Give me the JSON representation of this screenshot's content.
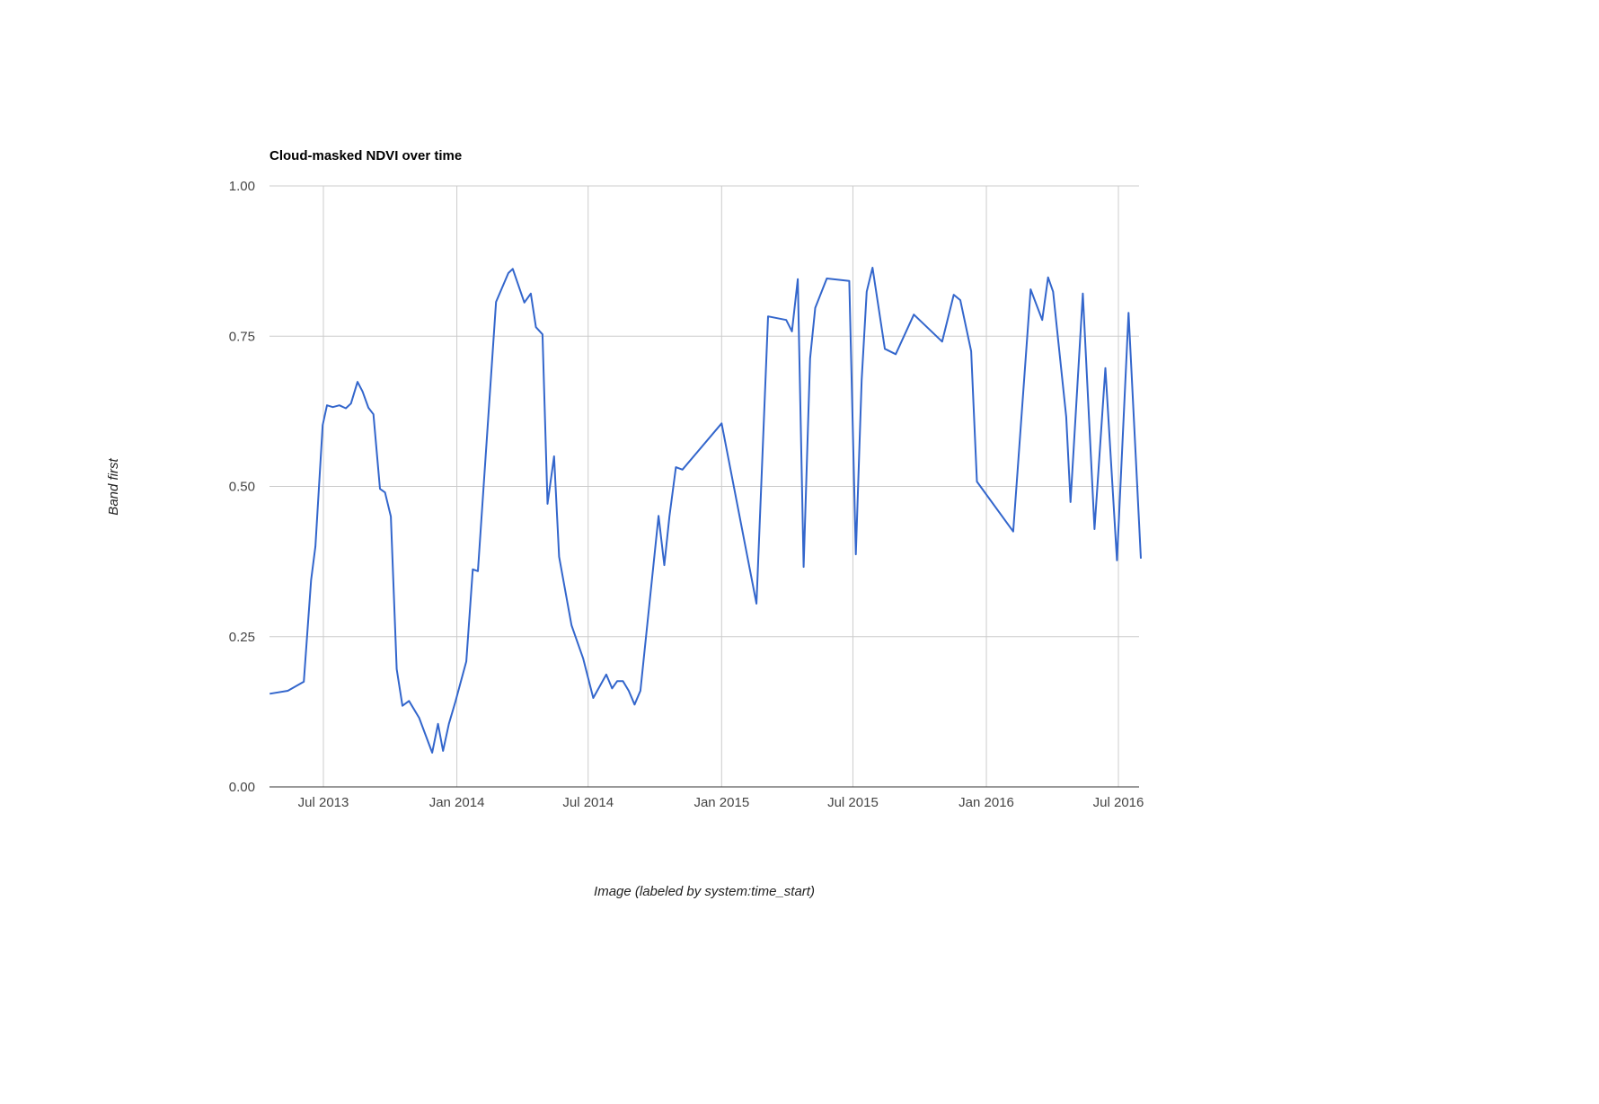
{
  "chart_data": {
    "type": "line",
    "title": "Cloud-masked NDVI over time",
    "xlabel": "Image (labeled by system:time_start)",
    "ylabel": "Band first",
    "ylim": [
      0,
      1
    ],
    "xlim": [
      "2013-04-18",
      "2016-08-01"
    ],
    "grid": true,
    "legend": "none",
    "line_color": "#3366cc",
    "y_ticks": [
      {
        "value": 0,
        "label": "0.00"
      },
      {
        "value": 0.25,
        "label": "0.25"
      },
      {
        "value": 0.5,
        "label": "0.50"
      },
      {
        "value": 0.75,
        "label": "0.75"
      },
      {
        "value": 1,
        "label": "1.00"
      }
    ],
    "x_ticks": [
      {
        "date": "2013-07-01",
        "label": "Jul 2013"
      },
      {
        "date": "2014-01-01",
        "label": "Jan 2014"
      },
      {
        "date": "2014-07-01",
        "label": "Jul 2014"
      },
      {
        "date": "2015-01-01",
        "label": "Jan 2015"
      },
      {
        "date": "2015-07-01",
        "label": "Jul 2015"
      },
      {
        "date": "2016-01-01",
        "label": "Jan 2016"
      },
      {
        "date": "2016-07-01",
        "label": "Jul 2016"
      }
    ],
    "series": [
      {
        "points": [
          [
            "2013-04-18",
            0.155
          ],
          [
            "2013-05-13",
            0.16
          ],
          [
            "2013-06-04",
            0.175
          ],
          [
            "2013-06-14",
            0.344
          ],
          [
            "2013-06-20",
            0.4
          ],
          [
            "2013-06-30",
            0.602
          ],
          [
            "2013-07-06",
            0.635
          ],
          [
            "2013-07-14",
            0.632
          ],
          [
            "2013-07-23",
            0.635
          ],
          [
            "2013-08-01",
            0.63
          ],
          [
            "2013-08-08",
            0.638
          ],
          [
            "2013-08-17",
            0.674
          ],
          [
            "2013-08-24",
            0.658
          ],
          [
            "2013-09-01",
            0.631
          ],
          [
            "2013-09-08",
            0.62
          ],
          [
            "2013-09-17",
            0.496
          ],
          [
            "2013-09-24",
            0.49
          ],
          [
            "2013-10-02",
            0.45
          ],
          [
            "2013-10-10",
            0.196
          ],
          [
            "2013-10-18",
            0.135
          ],
          [
            "2013-10-27",
            0.143
          ],
          [
            "2013-11-10",
            0.115
          ],
          [
            "2013-11-28",
            0.057
          ],
          [
            "2013-12-06",
            0.105
          ],
          [
            "2013-12-13",
            0.06
          ],
          [
            "2013-12-21",
            0.105
          ],
          [
            "2013-12-30",
            0.142
          ],
          [
            "2014-01-14",
            0.209
          ],
          [
            "2014-01-23",
            0.362
          ],
          [
            "2014-01-30",
            0.359
          ],
          [
            "2014-02-24",
            0.807
          ],
          [
            "2014-03-13",
            0.855
          ],
          [
            "2014-03-19",
            0.862
          ],
          [
            "2014-04-04",
            0.806
          ],
          [
            "2014-04-13",
            0.821
          ],
          [
            "2014-04-20",
            0.765
          ],
          [
            "2014-04-29",
            0.753
          ],
          [
            "2014-05-06",
            0.471
          ],
          [
            "2014-05-15",
            0.55
          ],
          [
            "2014-05-22",
            0.383
          ],
          [
            "2014-06-08",
            0.269
          ],
          [
            "2014-06-15",
            0.245
          ],
          [
            "2014-06-24",
            0.214
          ],
          [
            "2014-07-08",
            0.148
          ],
          [
            "2014-07-26",
            0.187
          ],
          [
            "2014-08-03",
            0.164
          ],
          [
            "2014-08-10",
            0.176
          ],
          [
            "2014-08-18",
            0.176
          ],
          [
            "2014-08-26",
            0.16
          ],
          [
            "2014-09-03",
            0.137
          ],
          [
            "2014-09-11",
            0.16
          ],
          [
            "2014-10-06",
            0.451
          ],
          [
            "2014-10-14",
            0.369
          ],
          [
            "2014-10-21",
            0.45
          ],
          [
            "2014-10-30",
            0.532
          ],
          [
            "2014-11-08",
            0.528
          ],
          [
            "2015-01-01",
            0.605
          ],
          [
            "2015-02-18",
            0.305
          ],
          [
            "2015-03-06",
            0.783
          ],
          [
            "2015-03-31",
            0.777
          ],
          [
            "2015-04-08",
            0.758
          ],
          [
            "2015-04-16",
            0.845
          ],
          [
            "2015-04-24",
            0.366
          ],
          [
            "2015-05-03",
            0.713
          ],
          [
            "2015-05-10",
            0.797
          ],
          [
            "2015-05-26",
            0.846
          ],
          [
            "2015-06-26",
            0.842
          ],
          [
            "2015-07-05",
            0.387
          ],
          [
            "2015-07-13",
            0.677
          ],
          [
            "2015-07-20",
            0.824
          ],
          [
            "2015-07-28",
            0.864
          ],
          [
            "2015-08-14",
            0.729
          ],
          [
            "2015-08-29",
            0.72
          ],
          [
            "2015-09-23",
            0.786
          ],
          [
            "2015-11-01",
            0.741
          ],
          [
            "2015-11-17",
            0.819
          ],
          [
            "2015-11-26",
            0.81
          ],
          [
            "2015-12-11",
            0.725
          ],
          [
            "2015-12-19",
            0.508
          ],
          [
            "2016-02-07",
            0.425
          ],
          [
            "2016-03-02",
            0.828
          ],
          [
            "2016-03-18",
            0.777
          ],
          [
            "2016-03-26",
            0.848
          ],
          [
            "2016-04-02",
            0.824
          ],
          [
            "2016-04-20",
            0.616
          ],
          [
            "2016-04-26",
            0.474
          ],
          [
            "2016-05-13",
            0.821
          ],
          [
            "2016-05-29",
            0.429
          ],
          [
            "2016-06-13",
            0.697
          ],
          [
            "2016-06-29",
            0.377
          ],
          [
            "2016-07-15",
            0.789
          ],
          [
            "2016-08-01",
            0.38
          ]
        ]
      }
    ]
  }
}
